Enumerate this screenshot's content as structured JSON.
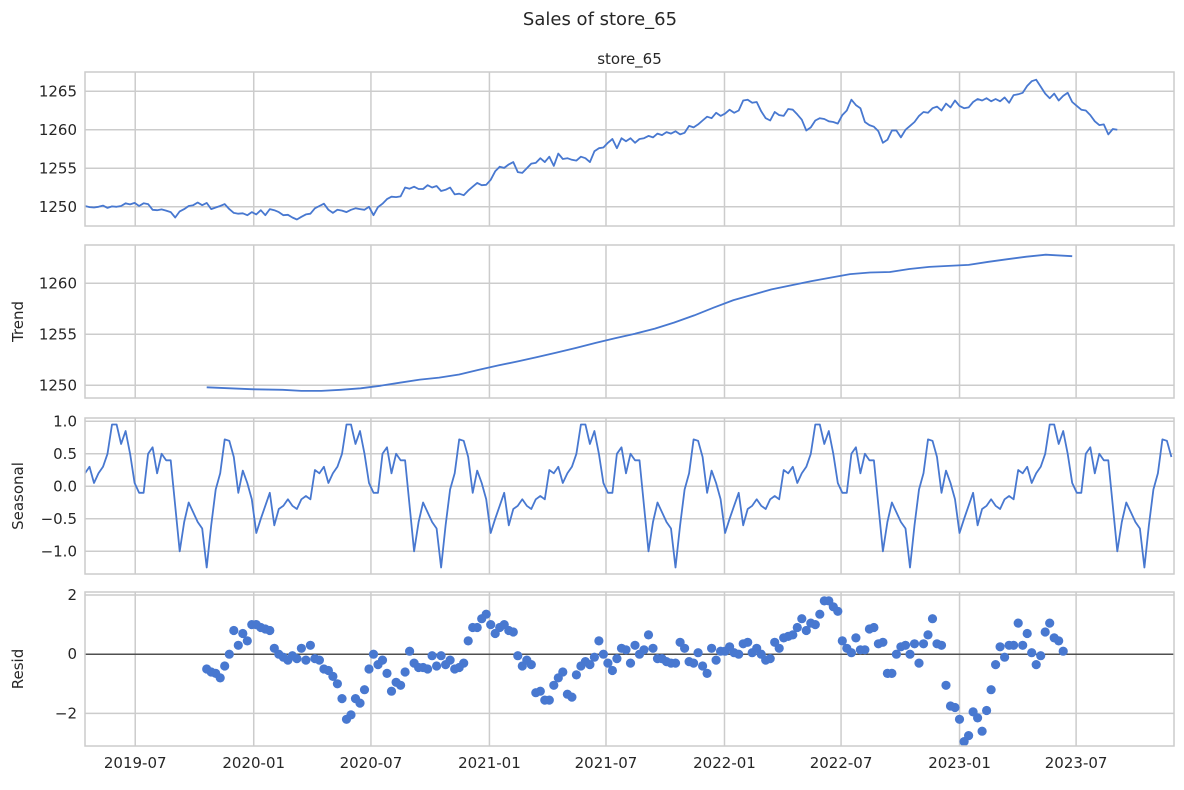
{
  "figure": {
    "suptitle": "Sales of store_65"
  },
  "colors": {
    "line": "#4878d0",
    "grid": "#cccccc",
    "spine": "#cccccc",
    "zero_line": "#262626",
    "text": "#262626"
  },
  "chart_data": [
    {
      "id": "observed",
      "type": "line",
      "title": "store_65",
      "ylabel": "",
      "ylim": [
        1247.5,
        1267.5
      ],
      "yticks": [
        1250,
        1255,
        1260,
        1265
      ],
      "xlim": [
        "2019-04-14",
        "2023-11-30"
      ],
      "grid": true,
      "series": [
        {
          "x_start": "2019-04-14",
          "x_step_days": 7,
          "values": [
            1250.1,
            1249.95,
            1249.9,
            1250.0,
            1250.15,
            1249.85,
            1250.05,
            1250.0,
            1250.1,
            1250.45,
            1250.3,
            1250.5,
            1250.1,
            1250.45,
            1250.35,
            1249.6,
            1249.55,
            1249.65,
            1249.5,
            1249.3,
            1248.6,
            1249.4,
            1249.7,
            1250.1,
            1250.2,
            1250.55,
            1250.2,
            1250.5,
            1249.7,
            1249.9,
            1250.1,
            1250.35,
            1249.7,
            1249.2,
            1249.1,
            1249.15,
            1248.9,
            1249.3,
            1249.0,
            1249.55,
            1248.9,
            1249.7,
            1249.55,
            1249.3,
            1248.9,
            1248.95,
            1248.6,
            1248.35,
            1248.7,
            1249.0,
            1249.1,
            1249.8,
            1250.1,
            1250.4,
            1249.6,
            1249.2,
            1249.6,
            1249.5,
            1249.3,
            1249.6,
            1249.8,
            1249.7,
            1249.6,
            1250.0,
            1248.9,
            1249.95,
            1250.4,
            1251.0,
            1251.3,
            1251.25,
            1251.35,
            1252.5,
            1252.35,
            1252.6,
            1252.3,
            1252.3,
            1252.8,
            1252.5,
            1252.7,
            1252.05,
            1252.2,
            1252.5,
            1251.6,
            1251.7,
            1251.5,
            1252.1,
            1252.6,
            1253.1,
            1252.8,
            1252.85,
            1253.5,
            1254.6,
            1255.2,
            1255.05,
            1255.5,
            1255.8,
            1254.5,
            1254.4,
            1255.0,
            1255.6,
            1255.7,
            1256.3,
            1255.8,
            1256.5,
            1255.3,
            1256.9,
            1256.2,
            1256.3,
            1256.1,
            1256.0,
            1256.5,
            1256.3,
            1255.8,
            1257.2,
            1257.6,
            1257.7,
            1258.3,
            1258.8,
            1257.6,
            1258.9,
            1258.5,
            1258.9,
            1258.3,
            1258.8,
            1258.9,
            1259.2,
            1259.0,
            1259.5,
            1259.3,
            1259.7,
            1259.5,
            1259.8,
            1259.4,
            1259.6,
            1260.5,
            1260.3,
            1260.7,
            1261.2,
            1261.7,
            1261.5,
            1262.2,
            1261.8,
            1262.1,
            1262.6,
            1262.2,
            1262.5,
            1263.8,
            1263.9,
            1263.5,
            1263.6,
            1262.4,
            1261.5,
            1261.2,
            1262.3,
            1261.9,
            1261.8,
            1262.7,
            1262.6,
            1262.0,
            1261.3,
            1259.9,
            1260.3,
            1261.2,
            1261.5,
            1261.4,
            1261.1,
            1261.0,
            1260.8,
            1261.9,
            1262.5,
            1263.9,
            1263.2,
            1262.8,
            1261.0,
            1260.6,
            1260.4,
            1259.8,
            1258.3,
            1258.7,
            1259.9,
            1259.9,
            1259.0,
            1260.0,
            1260.5,
            1261.0,
            1261.8,
            1262.3,
            1262.2,
            1262.8,
            1263.0,
            1262.5,
            1263.4,
            1262.9,
            1263.8,
            1263.1,
            1262.8,
            1262.9,
            1263.6,
            1264.0,
            1263.8,
            1264.1,
            1263.7,
            1264.0,
            1263.7,
            1264.2,
            1263.5,
            1264.5,
            1264.6,
            1264.8,
            1265.7,
            1266.3,
            1266.5,
            1265.6,
            1264.7,
            1264.1,
            1264.7,
            1263.8,
            1264.4,
            1264.8,
            1263.6,
            1263.1,
            1262.6,
            1262.5,
            1261.9,
            1261.1,
            1260.6,
            1260.7,
            1259.4,
            1260.1,
            1260.0
          ]
        }
      ]
    },
    {
      "id": "trend",
      "type": "line",
      "title": "",
      "ylabel": "Trend",
      "ylim": [
        1248.75,
        1263.75
      ],
      "yticks": [
        1250,
        1255,
        1260
      ],
      "grid": true,
      "series": [
        {
          "points": [
            [
              "2019-10-20",
              1249.8
            ],
            [
              "2020-01-01",
              1249.6
            ],
            [
              "2020-02-15",
              1249.55
            ],
            [
              "2020-03-15",
              1249.45
            ],
            [
              "2020-04-15",
              1249.45
            ],
            [
              "2020-05-15",
              1249.55
            ],
            [
              "2020-06-15",
              1249.7
            ],
            [
              "2020-07-15",
              1249.95
            ],
            [
              "2020-08-15",
              1250.25
            ],
            [
              "2020-09-15",
              1250.55
            ],
            [
              "2020-10-15",
              1250.75
            ],
            [
              "2020-11-15",
              1251.05
            ],
            [
              "2020-12-15",
              1251.5
            ],
            [
              "2021-01-15",
              1251.95
            ],
            [
              "2021-02-15",
              1252.35
            ],
            [
              "2021-03-15",
              1252.75
            ],
            [
              "2021-04-15",
              1253.2
            ],
            [
              "2021-05-15",
              1253.65
            ],
            [
              "2021-06-15",
              1254.15
            ],
            [
              "2021-07-15",
              1254.6
            ],
            [
              "2021-08-15",
              1255.05
            ],
            [
              "2021-09-15",
              1255.55
            ],
            [
              "2021-10-15",
              1256.15
            ],
            [
              "2021-11-15",
              1256.85
            ],
            [
              "2021-12-15",
              1257.6
            ],
            [
              "2022-01-15",
              1258.35
            ],
            [
              "2022-02-15",
              1258.9
            ],
            [
              "2022-03-15",
              1259.4
            ],
            [
              "2022-04-15",
              1259.8
            ],
            [
              "2022-05-15",
              1260.2
            ],
            [
              "2022-06-15",
              1260.55
            ],
            [
              "2022-07-15",
              1260.9
            ],
            [
              "2022-08-15",
              1261.05
            ],
            [
              "2022-09-15",
              1261.1
            ],
            [
              "2022-10-15",
              1261.4
            ],
            [
              "2022-11-15",
              1261.6
            ],
            [
              "2022-12-15",
              1261.7
            ],
            [
              "2023-01-15",
              1261.8
            ],
            [
              "2023-02-15",
              1262.1
            ],
            [
              "2023-03-15",
              1262.35
            ],
            [
              "2023-04-15",
              1262.6
            ],
            [
              "2023-05-15",
              1262.8
            ],
            [
              "2023-06-25",
              1262.65
            ]
          ]
        }
      ]
    },
    {
      "id": "seasonal",
      "type": "line",
      "title": "",
      "ylabel": "Seasonal",
      "ylim": [
        -1.35,
        1.05
      ],
      "yticks": [
        -1.0,
        -0.5,
        0.0,
        0.5,
        1.0
      ],
      "grid": true,
      "series": [
        {
          "x_start": "2019-04-14",
          "x_step_days": 7,
          "period": 52,
          "cycle_start": 40,
          "cycle_values": [
            -0.1,
            -0.1,
            0.5,
            0.6,
            0.2,
            0.5,
            0.4,
            0.4,
            -0.3,
            -1.0,
            -0.55,
            -0.25,
            -0.4,
            -0.55,
            -0.65,
            -1.25,
            -0.6,
            -0.05,
            0.2,
            0.72,
            0.7,
            0.45,
            -0.1,
            0.24,
            0.05,
            -0.2,
            -0.72,
            -0.5,
            -0.3,
            -0.1,
            -0.6,
            -0.35,
            -0.3,
            -0.2,
            -0.3,
            -0.35,
            -0.2,
            -0.15,
            -0.2,
            0.25,
            0.2,
            0.3,
            0.05,
            0.2,
            0.3,
            0.5,
            0.95,
            0.95,
            0.65,
            0.85,
            0.5,
            0.05
          ]
        }
      ]
    },
    {
      "id": "resid",
      "type": "scatter",
      "title": "",
      "ylabel": "Resid",
      "ylim": [
        -3.1,
        2.1
      ],
      "yticks": [
        -2,
        0,
        2
      ],
      "grid": true,
      "zero_line": true,
      "x_ticks": [
        "2019-07",
        "2020-01",
        "2020-07",
        "2021-01",
        "2021-07",
        "2022-01",
        "2022-07",
        "2023-01",
        "2023-07"
      ],
      "series": [
        {
          "x_start": "2019-10-20",
          "x_step_days": 7,
          "values": [
            -0.5,
            -0.6,
            -0.65,
            -0.8,
            -0.4,
            0.0,
            0.8,
            0.3,
            0.7,
            0.45,
            1.0,
            1.0,
            0.9,
            0.85,
            0.8,
            0.2,
            0.0,
            -0.1,
            -0.2,
            -0.05,
            -0.15,
            0.2,
            -0.2,
            0.3,
            -0.15,
            -0.2,
            -0.5,
            -0.55,
            -0.75,
            -1.0,
            -1.5,
            -2.2,
            -2.05,
            -1.5,
            -1.65,
            -1.2,
            -0.5,
            0.0,
            -0.35,
            -0.2,
            -0.65,
            -1.25,
            -0.95,
            -1.05,
            -0.6,
            0.1,
            -0.3,
            -0.45,
            -0.45,
            -0.5,
            -0.05,
            -0.4,
            -0.05,
            -0.35,
            -0.2,
            -0.5,
            -0.45,
            -0.3,
            0.45,
            0.9,
            0.9,
            1.2,
            1.35,
            1.0,
            0.7,
            0.9,
            1.0,
            0.8,
            0.75,
            -0.05,
            -0.4,
            -0.2,
            -0.35,
            -1.3,
            -1.25,
            -1.55,
            -1.55,
            -1.05,
            -0.8,
            -0.6,
            -1.35,
            -1.45,
            -0.7,
            -0.4,
            -0.25,
            -0.35,
            -0.1,
            0.45,
            0.0,
            -0.3,
            -0.55,
            -0.15,
            0.2,
            0.15,
            -0.3,
            0.3,
            0.0,
            0.15,
            0.65,
            0.2,
            -0.15,
            -0.15,
            -0.25,
            -0.3,
            -0.3,
            0.4,
            0.2,
            -0.25,
            -0.3,
            0.05,
            -0.4,
            -0.65,
            0.2,
            -0.2,
            0.1,
            0.1,
            0.25,
            0.05,
            0.0,
            0.35,
            0.4,
            0.05,
            0.2,
            0.0,
            -0.2,
            -0.15,
            0.4,
            0.2,
            0.55,
            0.6,
            0.65,
            0.9,
            1.2,
            0.8,
            1.05,
            1.0,
            1.35,
            1.8,
            1.8,
            1.6,
            1.45,
            0.45,
            0.2,
            0.05,
            0.55,
            0.15,
            0.15,
            0.85,
            0.9,
            0.35,
            0.4,
            -0.65,
            -0.65,
            0.0,
            0.25,
            0.3,
            0.0,
            0.35,
            -0.3,
            0.35,
            0.65,
            1.2,
            0.35,
            0.3,
            -1.05,
            -1.75,
            -1.8,
            -2.2,
            -2.95,
            -2.75,
            -1.95,
            -2.15,
            -2.6,
            -1.9,
            -1.2,
            -0.35,
            0.25,
            -0.1,
            0.3,
            0.3,
            1.05,
            0.3,
            0.7,
            0.05,
            -0.35,
            -0.05,
            0.75,
            1.05,
            0.55,
            0.45,
            0.1
          ]
        }
      ]
    }
  ]
}
